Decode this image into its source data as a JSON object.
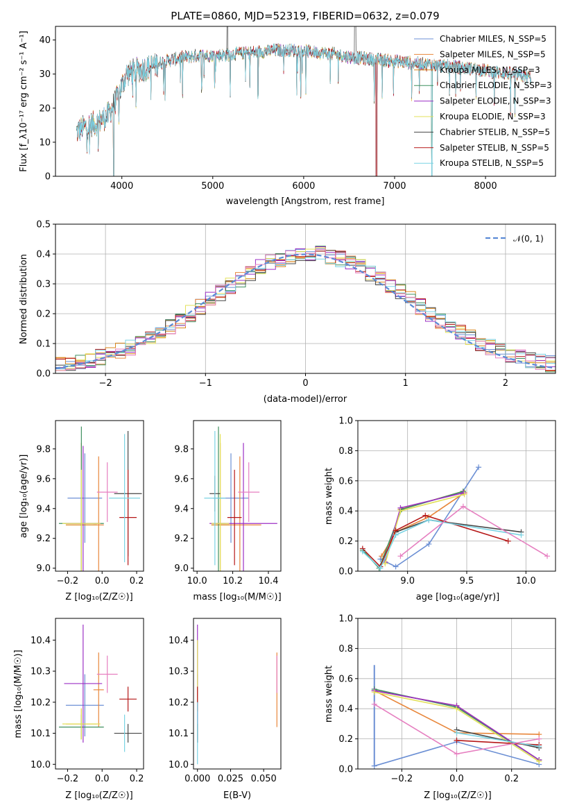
{
  "chart_data": [
    {
      "id": "spectrum",
      "type": "line",
      "title": "PLATE=0860, MJD=52319, FIBERID=0632, z=0.079",
      "xlabel": "wavelength [Angstrom, rest frame]",
      "ylabel": "Flux [f_λ10⁻¹⁷ erg cm⁻² s⁻¹ A⁻¹]",
      "xlim": [
        3270,
        8770
      ],
      "ylim": [
        0,
        44
      ],
      "xticks": [
        "4000",
        "5000",
        "6000",
        "7000",
        "8000"
      ],
      "yticks": [
        "0",
        "10",
        "20",
        "30",
        "40"
      ],
      "grid": false,
      "legend_position": "top-right",
      "series": [
        {
          "name": "Chabrier MILES, N_SSP=5",
          "color": "#6b8fd4"
        },
        {
          "name": "Salpeter MILES, N_SSP=5",
          "color": "#e8863a"
        },
        {
          "name": "Kroupa MILES, N_SSP=3",
          "color": "#d9861b"
        },
        {
          "name": "Chabrier ELODIE, N_SSP=3",
          "color": "#3f8f5f"
        },
        {
          "name": "Salpeter ELODIE, N_SSP=3",
          "color": "#9b2fc4"
        },
        {
          "name": "Kroupa ELODIE, N_SSP=3",
          "color": "#e3e05a"
        },
        {
          "name": "Chabrier STELIB, N_SSP=5",
          "color": "#444444"
        },
        {
          "name": "Salpeter STELIB, N_SSP=5",
          "color": "#b51616"
        },
        {
          "name": "Kroupa STELIB, N_SSP=5",
          "color": "#7ad3e3"
        }
      ],
      "anchor_x": [
        3500,
        3560,
        3650,
        3750,
        3850,
        3950,
        4050,
        4150,
        4300,
        4500,
        4700,
        4900,
        5100,
        5300,
        5500,
        5700,
        5900,
        6100,
        6300,
        6500,
        6700,
        6900,
        7100,
        7300,
        7500,
        7700,
        7900,
        8100,
        8300,
        8500
      ],
      "anchor_y": [
        13,
        14,
        15,
        16,
        18,
        23,
        30,
        31,
        32,
        34,
        35,
        35.5,
        35.5,
        36,
        36.5,
        37,
        37,
        36.5,
        36,
        35,
        34.5,
        34,
        33.5,
        33,
        32.5,
        32,
        31.5,
        30.5,
        30,
        29
      ],
      "dropouts": [
        3910,
        6800,
        7410
      ]
    },
    {
      "id": "residuals",
      "type": "line",
      "xlabel": "(data-model)/error",
      "ylabel": "Normed distribution",
      "xlim": [
        -2.5,
        2.5
      ],
      "ylim": [
        0,
        0.5
      ],
      "xticks": [
        "−2",
        "−1",
        "0",
        "1",
        "2"
      ],
      "yticks": [
        "0.0",
        "0.1",
        "0.2",
        "0.3",
        "0.4",
        "0.5"
      ],
      "grid": true,
      "legend_position": "top-right",
      "gaussian_label": "𝒩(0, 1)",
      "bin_width": 0.1
    },
    {
      "id": "age-vs-Z",
      "type": "scatter",
      "xlabel": "Z [log₁₀(Z/Z☉)]",
      "ylabel": "age  [log₁₀(age/yr)]",
      "xlim": [
        -0.27,
        0.24
      ],
      "ylim": [
        8.98,
        9.99
      ],
      "xticks": [
        "−0.2",
        "0.0",
        "0.2"
      ],
      "yticks": [
        "9.0",
        "9.2",
        "9.4",
        "9.6",
        "9.8"
      ],
      "grid": false,
      "points": [
        {
          "color": "#6b8fd4",
          "x": -0.1,
          "xerr": 0.1,
          "y": 9.47,
          "yerr": 0.3
        },
        {
          "color": "#e8863a",
          "x": -0.02,
          "xerr": 0.03,
          "y": 9.29,
          "yerr": 0.46
        },
        {
          "color": "#d9861b",
          "x": -0.12,
          "xerr": 0.09,
          "y": 9.29,
          "yerr": 0.55
        },
        {
          "color": "#3f8f5f",
          "x": -0.12,
          "xerr": 0.13,
          "y": 9.3,
          "yerr": 0.65
        },
        {
          "color": "#9b2fc4",
          "x": -0.11,
          "xerr": 0.1,
          "y": 9.3,
          "yerr": 0.52
        },
        {
          "color": "#e3e05a",
          "x": -0.12,
          "xerr": 0.11,
          "y": 9.3,
          "yerr": 0.36
        },
        {
          "color": "#444444",
          "x": 0.15,
          "xerr": 0.08,
          "y": 9.5,
          "yerr": 0.42
        },
        {
          "color": "#b51616",
          "x": 0.15,
          "xerr": 0.05,
          "y": 9.34,
          "yerr": 0.32
        },
        {
          "color": "#7ad3e3",
          "x": 0.13,
          "xerr": 0.09,
          "y": 9.47,
          "yerr": 0.43
        },
        {
          "color": "#e67fc0",
          "x": 0.03,
          "xerr": 0.06,
          "y": 9.51,
          "yerr": 0.2
        }
      ]
    },
    {
      "id": "age-vs-mass",
      "type": "scatter",
      "xlabel": "mass [log₁₀(M/M☉)]",
      "ylabel": "",
      "xlim": [
        9.98,
        10.47
      ],
      "ylim": [
        8.98,
        9.99
      ],
      "xticks": [
        "10.0",
        "10.2",
        "10.4"
      ],
      "yticks": [
        "9.0",
        "9.2",
        "9.4",
        "9.6",
        "9.8"
      ],
      "grid": false,
      "points": [
        {
          "color": "#6b8fd4",
          "x": 10.19,
          "xerr": 0.1,
          "y": 9.47,
          "yerr": 0.3
        },
        {
          "color": "#e8863a",
          "x": 10.24,
          "xerr": 0.12,
          "y": 9.29,
          "yerr": 0.46
        },
        {
          "color": "#d9861b",
          "x": 10.13,
          "xerr": 0.05,
          "y": 9.29,
          "yerr": 0.55
        },
        {
          "color": "#3f8f5f",
          "x": 10.12,
          "xerr": 0.04,
          "y": 9.3,
          "yerr": 0.65
        },
        {
          "color": "#9b2fc4",
          "x": 10.26,
          "xerr": 0.19,
          "y": 9.3,
          "yerr": 0.54
        },
        {
          "color": "#e3e05a",
          "x": 10.13,
          "xerr": 0.05,
          "y": 9.3,
          "yerr": 0.6
        },
        {
          "color": "#444444",
          "x": 10.1,
          "xerr": 0.03,
          "y": 9.5,
          "yerr": 0.12
        },
        {
          "color": "#b51616",
          "x": 10.21,
          "xerr": 0.04,
          "y": 9.34,
          "yerr": 0.32
        },
        {
          "color": "#7ad3e3",
          "x": 10.1,
          "xerr": 0.06,
          "y": 9.47,
          "yerr": 0.45
        },
        {
          "color": "#e67fc0",
          "x": 10.29,
          "xerr": 0.06,
          "y": 9.51,
          "yerr": 0.2
        }
      ]
    },
    {
      "id": "weight-vs-age",
      "type": "line",
      "xlabel": "age  [log₁₀(age/yr)]",
      "ylabel": "mass weight",
      "xlim": [
        8.58,
        10.25
      ],
      "ylim": [
        0,
        1
      ],
      "xticks": [
        "9.0",
        "9.5",
        "10.0"
      ],
      "yticks": [
        "0.0",
        "0.2",
        "0.4",
        "0.6",
        "0.8",
        "1.0"
      ],
      "grid": true,
      "series": [
        {
          "color": "#6b8fd4",
          "x": [
            8.77,
            8.9,
            9.18,
            9.6
          ],
          "y": [
            0.08,
            0.03,
            0.18,
            0.69
          ]
        },
        {
          "color": "#e8863a",
          "x": [
            8.78,
            8.9,
            9.18,
            9.48
          ],
          "y": [
            0.1,
            0.26,
            0.36,
            0.52
          ]
        },
        {
          "color": "#d9861b",
          "x": [
            8.81,
            8.94,
            9.47
          ],
          "y": [
            0.06,
            0.41,
            0.53
          ]
        },
        {
          "color": "#3f8f5f",
          "x": [
            8.62,
            8.76,
            8.95,
            9.47
          ],
          "y": [
            0.14,
            0.02,
            0.41,
            0.53
          ]
        },
        {
          "color": "#9b2fc4",
          "x": [
            8.81,
            8.94,
            9.47
          ],
          "y": [
            0.06,
            0.42,
            0.52
          ]
        },
        {
          "color": "#e3e05a",
          "x": [
            8.81,
            8.94,
            9.48
          ],
          "y": [
            0.05,
            0.4,
            0.51
          ]
        },
        {
          "color": "#444444",
          "x": [
            8.9,
            9.18,
            9.96
          ],
          "y": [
            0.26,
            0.34,
            0.26
          ]
        },
        {
          "color": "#b51616",
          "x": [
            8.62,
            8.77,
            8.9,
            9.15,
            9.85
          ],
          "y": [
            0.15,
            0.03,
            0.27,
            0.37,
            0.2
          ]
        },
        {
          "color": "#7ad3e3",
          "x": [
            8.62,
            8.77,
            8.9,
            9.18,
            9.96
          ],
          "y": [
            0.13,
            0.02,
            0.24,
            0.34,
            0.24
          ]
        },
        {
          "color": "#e67fc0",
          "x": [
            8.94,
            9.47,
            10.18
          ],
          "y": [
            0.1,
            0.43,
            0.1
          ]
        }
      ]
    },
    {
      "id": "mass-vs-Z",
      "type": "scatter",
      "xlabel": "Z [log₁₀(Z/Z☉)]",
      "ylabel": "mass [log₁₀(M/M☉)]",
      "xlim": [
        -0.27,
        0.24
      ],
      "ylim": [
        9.985,
        10.47
      ],
      "xticks": [
        "−0.2",
        "0.0",
        "0.2"
      ],
      "yticks": [
        "10.0",
        "10.1",
        "10.2",
        "10.3",
        "10.4"
      ],
      "grid": false,
      "points": [
        {
          "color": "#6b8fd4",
          "x": -0.1,
          "xerr": 0.11,
          "y": 10.19,
          "yerr": 0.1
        },
        {
          "color": "#e8863a",
          "x": -0.02,
          "xerr": 0.03,
          "y": 10.24,
          "yerr": 0.12
        },
        {
          "color": "#d9861b",
          "x": -0.12,
          "xerr": 0.09,
          "y": 10.13,
          "yerr": 0.05
        },
        {
          "color": "#3f8f5f",
          "x": -0.12,
          "xerr": 0.13,
          "y": 10.12,
          "yerr": 0.04
        },
        {
          "color": "#9b2fc4",
          "x": -0.11,
          "xerr": 0.11,
          "y": 10.26,
          "yerr": 0.19
        },
        {
          "color": "#e3e05a",
          "x": -0.12,
          "xerr": 0.11,
          "y": 10.13,
          "yerr": 0.05
        },
        {
          "color": "#444444",
          "x": 0.15,
          "xerr": 0.08,
          "y": 10.1,
          "yerr": 0.03
        },
        {
          "color": "#b51616",
          "x": 0.15,
          "xerr": 0.05,
          "y": 10.21,
          "yerr": 0.04
        },
        {
          "color": "#7ad3e3",
          "x": 0.13,
          "xerr": 0.0,
          "y": 10.1,
          "yerr": 0.06
        },
        {
          "color": "#e67fc0",
          "x": 0.03,
          "xerr": 0.06,
          "y": 10.29,
          "yerr": 0.06
        }
      ]
    },
    {
      "id": "mass-vs-EBV",
      "type": "scatter",
      "xlabel": "E(B-V)",
      "ylabel": "",
      "xlim": [
        -0.003,
        0.063
      ],
      "ylim": [
        9.985,
        10.47
      ],
      "xticks": [
        "0.000",
        "0.025",
        "0.050"
      ],
      "yticks": [
        "10.0",
        "10.1",
        "10.2",
        "10.3",
        "10.4"
      ],
      "grid": false,
      "points": [
        {
          "color": "#6b8fd4",
          "x": 0.0,
          "xerr": 0,
          "y": 10.19,
          "yerr": 0.1
        },
        {
          "color": "#e8863a",
          "x": 0.06,
          "xerr": 0,
          "y": 10.24,
          "yerr": 0.12
        },
        {
          "color": "#d9861b",
          "x": 0.0,
          "xerr": 0,
          "y": 10.13,
          "yerr": 0.05
        },
        {
          "color": "#3f8f5f",
          "x": 0.0,
          "xerr": 0,
          "y": 10.12,
          "yerr": 0.04
        },
        {
          "color": "#9b2fc4",
          "x": 0.0,
          "xerr": 0,
          "y": 10.26,
          "yerr": 0.19
        },
        {
          "color": "#e3e05a",
          "x": 0.0,
          "xerr": 0,
          "y": 10.3,
          "yerr": 0.1
        },
        {
          "color": "#444444",
          "x": 0.0,
          "xerr": 0,
          "y": 10.1,
          "yerr": 0.03
        },
        {
          "color": "#b51616",
          "x": 0.0,
          "xerr": 0,
          "y": 10.21,
          "yerr": 0.04
        },
        {
          "color": "#7ad3e3",
          "x": 0.0,
          "xerr": 0,
          "y": 10.1,
          "yerr": 0.1
        },
        {
          "color": "#e67fc0",
          "x": 0.06,
          "xerr": 0,
          "y": 10.29,
          "yerr": 0.06
        }
      ]
    },
    {
      "id": "weight-vs-Z",
      "type": "line",
      "xlabel": "Z [log₁₀(Z/Z☉)]",
      "ylabel": "mass weight",
      "xlim": [
        -0.36,
        0.36
      ],
      "ylim": [
        0,
        1
      ],
      "xticks": [
        "−0.2",
        "0.0",
        "0.2"
      ],
      "yticks": [
        "0.0",
        "0.2",
        "0.4",
        "0.6",
        "0.8",
        "1.0"
      ],
      "grid": true,
      "series": [
        {
          "color": "#6b8fd4",
          "x": [
            -0.3,
            0.0,
            0.3
          ],
          "y": [
            0.02,
            0.18,
            0.03
          ],
          "err_x": -0.3,
          "err_y": [
            0.02,
            0.69
          ]
        },
        {
          "color": "#e8863a",
          "x": [
            -0.3,
            0.0,
            0.3
          ],
          "y": [
            0.52,
            0.24,
            0.23
          ]
        },
        {
          "color": "#d9861b",
          "x": [
            -0.3,
            0.0,
            0.3
          ],
          "y": [
            0.52,
            0.42,
            0.06
          ]
        },
        {
          "color": "#3f8f5f",
          "x": [
            -0.3,
            0.0,
            0.3
          ],
          "y": [
            0.53,
            0.41,
            0.06
          ]
        },
        {
          "color": "#9b2fc4",
          "x": [
            -0.3,
            0.0,
            0.3
          ],
          "y": [
            0.52,
            0.42,
            0.06
          ]
        },
        {
          "color": "#e3e05a",
          "x": [
            -0.3,
            0.0,
            0.3
          ],
          "y": [
            0.51,
            0.4,
            0.05
          ]
        },
        {
          "color": "#444444",
          "x": [
            0.0,
            0.3
          ],
          "y": [
            0.26,
            0.14
          ]
        },
        {
          "color": "#b51616",
          "x": [
            0.0,
            0.3
          ],
          "y": [
            0.19,
            0.16
          ]
        },
        {
          "color": "#7ad3e3",
          "x": [
            0.0,
            0.3
          ],
          "y": [
            0.24,
            0.15
          ]
        },
        {
          "color": "#e67fc0",
          "x": [
            -0.3,
            0.0,
            0.3
          ],
          "y": [
            0.43,
            0.1,
            0.2
          ]
        }
      ]
    }
  ]
}
